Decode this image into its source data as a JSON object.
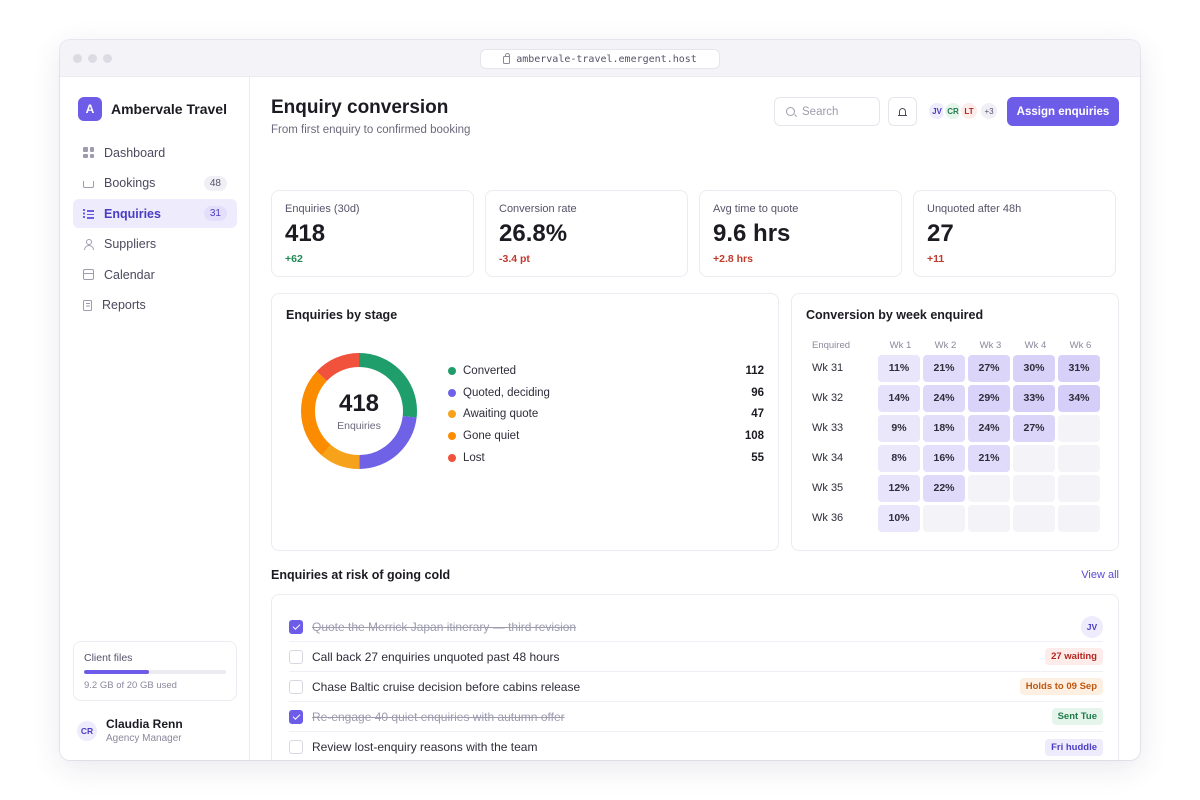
{
  "browser": {
    "url": "ambervale-travel.emergent.host"
  },
  "sidebar": {
    "brand": {
      "initial": "A",
      "name": "Ambervale Travel"
    },
    "items": [
      {
        "label": "Dashboard",
        "icon": "grid-icon"
      },
      {
        "label": "Bookings",
        "icon": "cart-icon",
        "count": "48"
      },
      {
        "label": "Enquiries",
        "icon": "checklist-icon",
        "count": "31",
        "active": true
      },
      {
        "label": "Suppliers",
        "icon": "user-icon"
      },
      {
        "label": "Calendar",
        "icon": "calendar-icon"
      },
      {
        "label": "Reports",
        "icon": "document-icon"
      }
    ],
    "files": {
      "title": "Client files",
      "used_text": "9.2 GB of 20 GB used",
      "fraction": 0.46
    },
    "user": {
      "initials": "CR",
      "name": "Claudia Renn",
      "role": "Agency Manager"
    }
  },
  "header": {
    "title": "Enquiry conversion",
    "subtitle": "From first enquiry to confirmed booking",
    "search_placeholder": "Search",
    "avatars": [
      {
        "initials": "JV",
        "bg": "#eeebfc",
        "fg": "#4a3cc4"
      },
      {
        "initials": "CR",
        "bg": "#e6f5ec",
        "fg": "#1f7a4a"
      },
      {
        "initials": "LT",
        "bg": "#fdecea",
        "fg": "#b3261e"
      }
    ],
    "avatars_more": "+3",
    "assign_label": "Assign enquiries"
  },
  "stats": [
    {
      "label": "Enquiries (30d)",
      "value": "418",
      "delta": "+62",
      "trend": "up"
    },
    {
      "label": "Conversion rate",
      "value": "26.8%",
      "delta": "-3.4 pt",
      "trend": "down"
    },
    {
      "label": "Avg time to quote",
      "value": "9.6 hrs",
      "delta": "+2.8 hrs",
      "trend": "down"
    },
    {
      "label": "Unquoted after 48h",
      "value": "27",
      "delta": "+11",
      "trend": "down"
    }
  ],
  "stage_card": {
    "title": "Enquiries by stage",
    "total": "418",
    "total_label": "Enquiries"
  },
  "chart_data": {
    "type": "pie",
    "categories": [
      "Converted",
      "Quoted, deciding",
      "Awaiting quote",
      "Gone quiet",
      "Lost"
    ],
    "values": [
      112,
      96,
      47,
      108,
      55
    ],
    "colors": [
      "#1f9d6b",
      "#7062e6",
      "#f7a21b",
      "#fb8c00",
      "#f0523b"
    ]
  },
  "cohort": {
    "title": "Conversion by week enquired",
    "corner_label": "Enquired",
    "columns": [
      "Wk 1",
      "Wk 2",
      "Wk 3",
      "Wk 4",
      "Wk 6"
    ],
    "rows": [
      {
        "label": "Wk 31",
        "values": [
          "11%",
          "21%",
          "27%",
          "30%",
          "31%"
        ]
      },
      {
        "label": "Wk 32",
        "values": [
          "14%",
          "24%",
          "29%",
          "33%",
          "34%"
        ]
      },
      {
        "label": "Wk 33",
        "values": [
          "9%",
          "18%",
          "24%",
          "27%",
          ""
        ]
      },
      {
        "label": "Wk 34",
        "values": [
          "8%",
          "16%",
          "21%",
          "",
          ""
        ]
      },
      {
        "label": "Wk 35",
        "values": [
          "12%",
          "22%",
          "",
          "",
          ""
        ]
      },
      {
        "label": "Wk 36",
        "values": [
          "10%",
          "",
          "",
          "",
          ""
        ]
      }
    ]
  },
  "risk": {
    "title": "Enquiries at risk of going cold",
    "view_all": "View all",
    "tasks": [
      {
        "text": "Quote the Merrick Japan itinerary — third revision",
        "done": true,
        "avatar": "JV"
      },
      {
        "text": "Call back 27 enquiries unquoted past 48 hours",
        "done": false,
        "badge": "27 waiting",
        "badge_style": "red"
      },
      {
        "text": "Chase Baltic cruise decision before cabins release",
        "done": false,
        "badge": "Holds to 09 Sep",
        "badge_style": "orange"
      },
      {
        "text": "Re-engage 40 quiet enquiries with autumn offer",
        "done": true,
        "badge": "Sent Tue",
        "badge_style": "green"
      },
      {
        "text": "Review lost-enquiry reasons with the team",
        "done": false,
        "badge": "Fri huddle",
        "badge_style": "purple"
      }
    ]
  }
}
